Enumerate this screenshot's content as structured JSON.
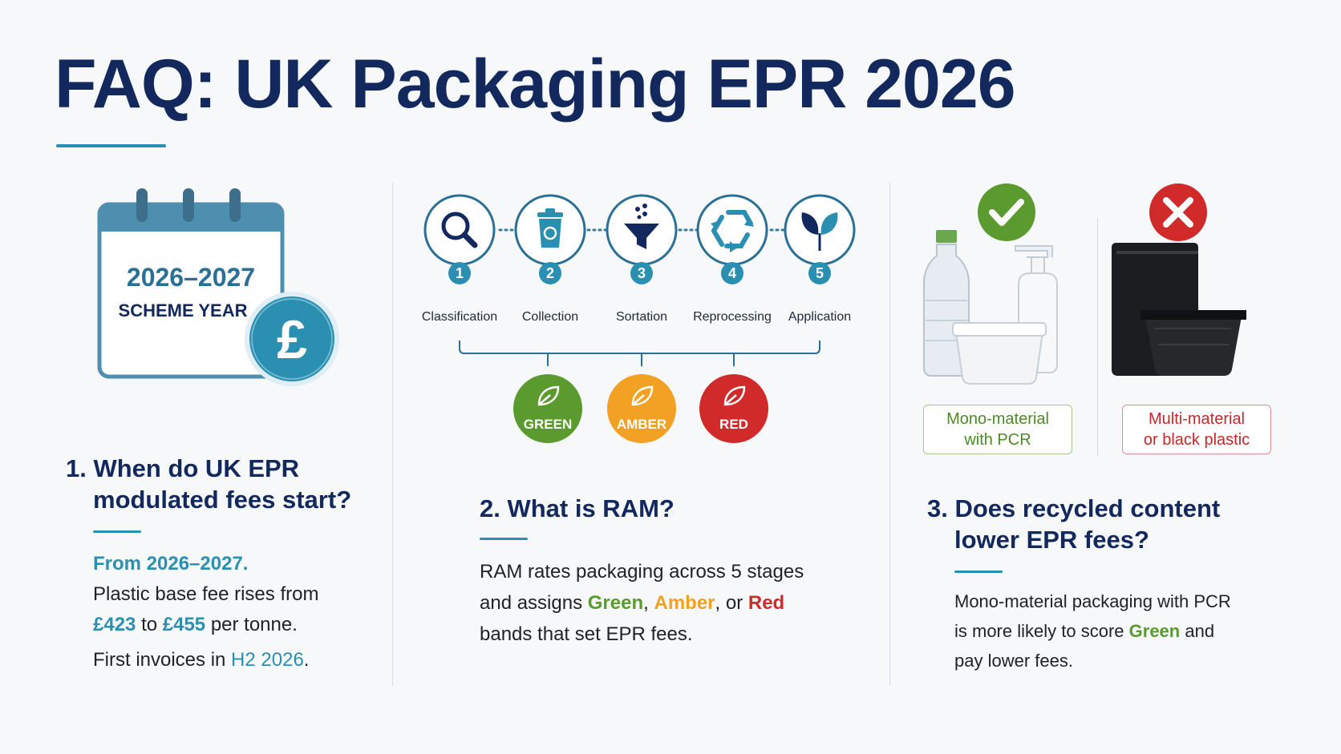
{
  "title": "FAQ: UK Packaging EPR 2026",
  "col1": {
    "calendar": {
      "years": "2026–2027",
      "label": "SCHEME YEAR",
      "currency": "£"
    },
    "question": {
      "line1": "1. When do UK EPR",
      "line2": "modulated fees start?"
    },
    "answer": {
      "lead": "From 2026–2027.",
      "line1": "Plastic base fee rises from",
      "fee_from": "£423",
      "to_word": "to",
      "fee_to": "£455",
      "per_tonne": "per tonne.",
      "invoices_prefix": "First invoices in",
      "invoices_period": "H2 2026",
      "invoices_suffix": "."
    }
  },
  "col2": {
    "stages": [
      {
        "number": "1",
        "label": "Classification",
        "icon": "magnifier-icon"
      },
      {
        "number": "2",
        "label": "Collection",
        "icon": "recycling-bin-icon"
      },
      {
        "number": "3",
        "label": "Sortation",
        "icon": "funnel-icon"
      },
      {
        "number": "4",
        "label": "Reprocessing",
        "icon": "recycle-icon"
      },
      {
        "number": "5",
        "label": "Application",
        "icon": "plant-icon"
      }
    ],
    "bands": [
      {
        "label": "GREEN",
        "color": "#5b9a2e"
      },
      {
        "label": "AMBER",
        "color": "#f2a124"
      },
      {
        "label": "RED",
        "color": "#d02a2a"
      }
    ],
    "question": "2. What is RAM?",
    "answer": {
      "line1": "RAM rates packaging across 5 stages",
      "and_assigns": "and assigns",
      "green": "Green",
      "comma": ",",
      "amber": "Amber",
      "or": ", or",
      "red": "Red",
      "line3": "bands that set EPR fees."
    }
  },
  "col3": {
    "good_tag": {
      "line1": "Mono-material",
      "line2": "with PCR"
    },
    "bad_tag": {
      "line1": "Multi-material",
      "line2": "or black plastic"
    },
    "question": {
      "line1": "3. Does recycled content",
      "line2": "lower EPR fees?"
    },
    "answer": {
      "line1": "Mono-material packaging with PCR",
      "line2_prefix": "is more likely to score",
      "green": "Green",
      "line2_suffix": "and",
      "line3": "pay lower fees."
    }
  },
  "colors": {
    "navy": "#13285c",
    "teal": "#2a8fb0",
    "green": "#5b9a2e",
    "amber": "#f2a124",
    "red": "#d02a2a"
  }
}
